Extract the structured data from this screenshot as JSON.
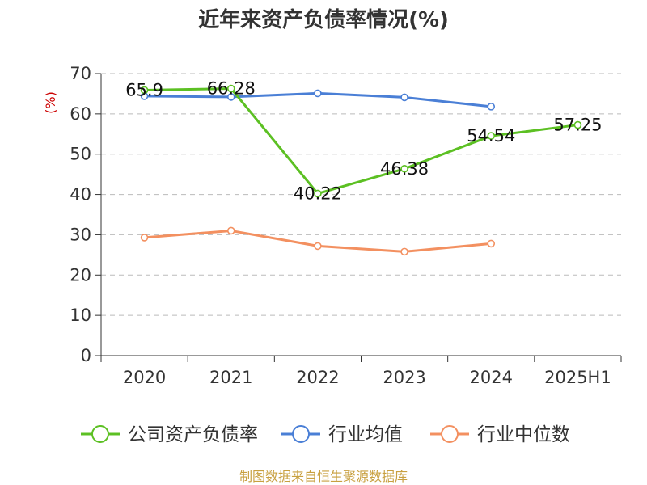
{
  "chart_data": {
    "type": "line",
    "title": "近年来资产负债率情况(%)",
    "ylabel": "(%)",
    "xlabel": "",
    "categories": [
      "2020",
      "2021",
      "2022",
      "2023",
      "2024",
      "2025H1"
    ],
    "ylim": [
      0,
      70
    ],
    "yticks": [
      0,
      10,
      20,
      30,
      40,
      50,
      60,
      70
    ],
    "grid": true,
    "legend_position": "bottom",
    "series": [
      {
        "name": "公司资产负债率",
        "color": "#5cc023",
        "values": [
          65.9,
          66.28,
          40.22,
          46.38,
          54.54,
          57.25
        ],
        "labels": [
          "65.9",
          "66.28",
          "40.22",
          "46.38",
          "54.54",
          "57.25"
        ]
      },
      {
        "name": "行业均值",
        "color": "#4a7fd6",
        "values": [
          64.4,
          64.2,
          65.1,
          64.1,
          61.8,
          null
        ]
      },
      {
        "name": "行业中位数",
        "color": "#f39060",
        "values": [
          29.3,
          31.0,
          27.2,
          25.8,
          27.8,
          null
        ]
      }
    ]
  },
  "source": "制图数据来自恒生聚源数据库"
}
